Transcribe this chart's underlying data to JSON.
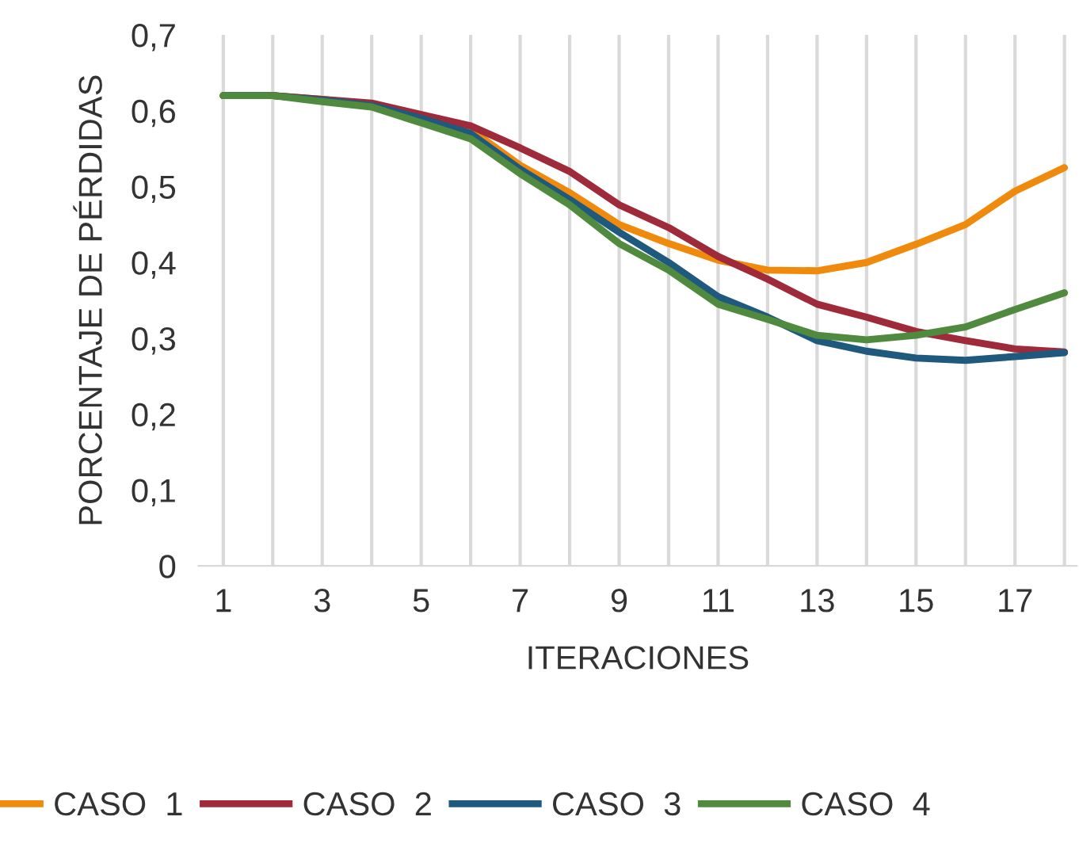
{
  "chart_data": {
    "type": "line",
    "xlabel": "ITERACIONES",
    "ylabel": "PORCENTAJE DE PÉRDIDAS",
    "x": [
      1,
      2,
      3,
      4,
      5,
      6,
      7,
      8,
      9,
      10,
      11,
      12,
      13,
      14,
      15,
      16,
      17,
      18
    ],
    "series": [
      {
        "name": "CASO  1",
        "color": "#f08a0c",
        "values": [
          0.62,
          0.62,
          0.615,
          0.608,
          0.59,
          0.575,
          0.528,
          0.492,
          0.45,
          0.425,
          0.403,
          0.39,
          0.389,
          0.4,
          0.424,
          0.45,
          0.494,
          0.525
        ]
      },
      {
        "name": "CASO  2",
        "color": "#9e2a3a",
        "values": [
          0.62,
          0.62,
          0.615,
          0.61,
          0.595,
          0.58,
          0.551,
          0.52,
          0.476,
          0.446,
          0.408,
          0.378,
          0.345,
          0.328,
          0.309,
          0.297,
          0.286,
          0.282
        ]
      },
      {
        "name": "CASO  3",
        "color": "#1f5a7e",
        "values": [
          0.62,
          0.62,
          0.614,
          0.607,
          0.59,
          0.57,
          0.523,
          0.483,
          0.44,
          0.4,
          0.355,
          0.328,
          0.297,
          0.283,
          0.274,
          0.271,
          0.276,
          0.281
        ]
      },
      {
        "name": "CASO  4",
        "color": "#4f8a3e",
        "values": [
          0.62,
          0.62,
          0.612,
          0.605,
          0.584,
          0.563,
          0.517,
          0.476,
          0.425,
          0.39,
          0.345,
          0.325,
          0.304,
          0.298,
          0.304,
          0.315,
          0.338,
          0.36
        ]
      }
    ],
    "xlim": [
      0.5,
      18.25
    ],
    "xticks": [
      1,
      {
        "value": 2,
        "label": null
      },
      3,
      {
        "value": 4,
        "label": null
      },
      5,
      {
        "value": 6,
        "label": null
      },
      7,
      {
        "value": 8,
        "label": null
      },
      9,
      {
        "value": 10,
        "label": null
      },
      11,
      {
        "value": 12,
        "label": null
      },
      13,
      {
        "value": 14,
        "label": null
      },
      15,
      {
        "value": 16,
        "label": null
      },
      17,
      {
        "value": 18,
        "label": null
      }
    ],
    "ylim": [
      0,
      0.7
    ],
    "yticks": [
      {
        "value": 0,
        "label": "0"
      },
      {
        "value": 0.1,
        "label": "0,1"
      },
      {
        "value": 0.2,
        "label": "0,2"
      },
      {
        "value": 0.3,
        "label": "0,3"
      },
      {
        "value": 0.4,
        "label": "0,4"
      },
      {
        "value": 0.5,
        "label": "0,5"
      },
      {
        "value": 0.6,
        "label": "0,6"
      },
      {
        "value": 0.7,
        "label": "0,7"
      }
    ],
    "grid": "x",
    "legend": "bottom",
    "marker": "none",
    "line_style": "solid"
  }
}
